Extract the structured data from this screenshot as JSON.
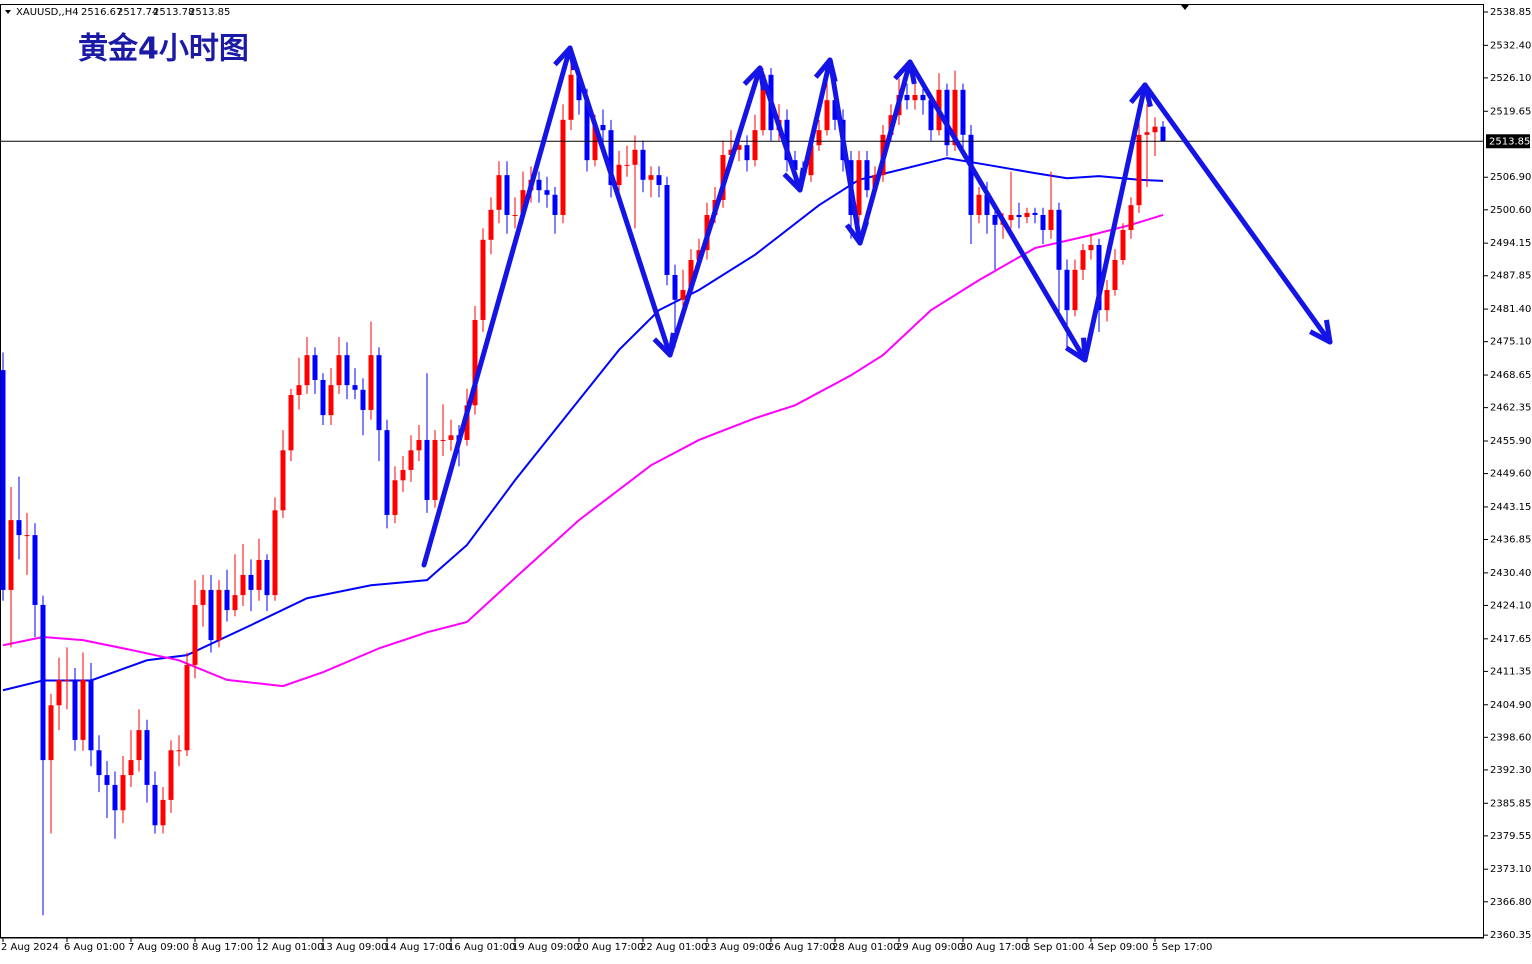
{
  "chart_data": {
    "type": "candlestick",
    "title": "黄金4小时图",
    "symbol": "XAUUSD,,H4",
    "bull_color": "#ff0000",
    "bear_color": "#0000ff",
    "price_line_color": "#000000",
    "ylim": [
      2359.8,
      2540.2
    ],
    "yticks": [
      2538.85,
      {
        "value": 2532.4,
        "label": "2532.40"
      },
      {
        "value": 2526.1,
        "label": "2526.10"
      },
      2519.65,
      {
        "value": 2506.9,
        "label": "2506.90"
      },
      {
        "value": 2500.6,
        "label": "2500.60"
      },
      2494.15,
      2487.85,
      {
        "value": 2481.4,
        "label": "2481.40"
      },
      {
        "value": 2475.1,
        "label": "2475.10"
      },
      2468.65,
      2462.35,
      {
        "value": 2455.9,
        "label": "2455.90"
      },
      {
        "value": 2449.6,
        "label": "2449.60"
      },
      2443.15,
      2436.85,
      {
        "value": 2430.4,
        "label": "2430.40"
      },
      {
        "value": 2424.1,
        "label": "2424.10"
      },
      2417.65,
      2411.35,
      {
        "value": 2404.9,
        "label": "2404.90"
      },
      {
        "value": 2398.6,
        "label": "2398.60"
      },
      {
        "value": 2392.3,
        "label": "2392.30"
      },
      2385.85,
      2379.55,
      {
        "value": 2373.1,
        "label": "2373.10"
      },
      {
        "value": 2366.8,
        "label": "2366.80"
      },
      2360.35
    ],
    "categories": [
      "2 Aug 2024",
      null,
      null,
      null,
      null,
      null,
      null,
      null,
      "6 Aug 01:00",
      null,
      null,
      null,
      null,
      null,
      null,
      null,
      "7 Aug 09:00",
      null,
      null,
      null,
      null,
      null,
      null,
      null,
      "8 Aug 17:00",
      null,
      null,
      null,
      null,
      null,
      null,
      null,
      "12 Aug 01:00",
      null,
      null,
      null,
      null,
      null,
      null,
      null,
      "13 Aug 09:00",
      null,
      null,
      null,
      null,
      null,
      null,
      null,
      "14 Aug 17:00",
      null,
      null,
      null,
      null,
      null,
      null,
      null,
      "16 Aug 01:00",
      null,
      null,
      null,
      null,
      null,
      null,
      null,
      "19 Aug 09:00",
      null,
      null,
      null,
      null,
      null,
      null,
      null,
      "20 Aug 17:00",
      null,
      null,
      null,
      null,
      null,
      null,
      null,
      "22 Aug 01:00",
      null,
      null,
      null,
      null,
      null,
      null,
      null,
      "23 Aug 09:00",
      null,
      null,
      null,
      null,
      null,
      null,
      null,
      "26 Aug 17:00",
      null,
      null,
      null,
      null,
      null,
      null,
      null,
      "28 Aug 01:00",
      null,
      null,
      null,
      null,
      null,
      null,
      null,
      "29 Aug 09:00",
      null,
      null,
      null,
      null,
      null,
      null,
      null,
      "30 Aug 17:00",
      null,
      null,
      null,
      null,
      null,
      null,
      null,
      "3 Sep 01:00",
      null,
      null,
      null,
      null,
      null,
      null,
      null,
      "4 Sep 09:00",
      null,
      null,
      null,
      null,
      null,
      null,
      null,
      "5 Sep 17:00",
      null
    ],
    "ohlc": [
      [
        2469.6,
        2473.0,
        2425.0,
        2427.1
      ],
      [
        2427.1,
        2447.0,
        2416.0,
        2440.6
      ],
      [
        2440.6,
        2449.0,
        2433.0,
        2437.7
      ],
      [
        2437.7,
        2442.0,
        2430.0,
        2437.7
      ],
      [
        2437.7,
        2440.0,
        2418.0,
        2424.2
      ],
      [
        2424.2,
        2426.0,
        2364.2,
        2394.2
      ],
      [
        2394.2,
        2407.0,
        2380.0,
        2404.8
      ],
      [
        2404.8,
        2414.0,
        2400.0,
        2409.7
      ],
      [
        2409.7,
        2416.0,
        2404.0,
        2409.7
      ],
      [
        2409.7,
        2412.0,
        2396.0,
        2398.1
      ],
      [
        2398.1,
        2415.0,
        2396.0,
        2409.7
      ],
      [
        2409.7,
        2413.0,
        2393.0,
        2396.1
      ],
      [
        2396.1,
        2399.0,
        2388.0,
        2391.3
      ],
      [
        2391.3,
        2394.0,
        2383.0,
        2389.4
      ],
      [
        2389.4,
        2392.0,
        2379.0,
        2384.5
      ],
      [
        2384.5,
        2395.0,
        2382.0,
        2391.3
      ],
      [
        2391.3,
        2400.0,
        2389.0,
        2394.2
      ],
      [
        2394.2,
        2404.0,
        2392.0,
        2400.0
      ],
      [
        2400.0,
        2402.0,
        2386.0,
        2389.4
      ],
      [
        2389.4,
        2392.0,
        2380.0,
        2381.6
      ],
      [
        2381.6,
        2389.0,
        2380.0,
        2386.5
      ],
      [
        2386.5,
        2398.0,
        2384.0,
        2396.1
      ],
      [
        2396.1,
        2399.0,
        2393.0,
        2396.1
      ],
      [
        2396.1,
        2415.0,
        2395.0,
        2412.6
      ],
      [
        2412.6,
        2429.0,
        2410.0,
        2424.2
      ],
      [
        2424.2,
        2430.0,
        2420.0,
        2427.1
      ],
      [
        2427.1,
        2430.0,
        2415.0,
        2417.4
      ],
      [
        2417.4,
        2429.0,
        2416.0,
        2427.1
      ],
      [
        2427.1,
        2431.0,
        2421.0,
        2423.2
      ],
      [
        2423.2,
        2434.0,
        2422.0,
        2426.1
      ],
      [
        2426.1,
        2436.0,
        2424.0,
        2430.0
      ],
      [
        2430.0,
        2433.0,
        2423.0,
        2427.1
      ],
      [
        2427.1,
        2437.0,
        2425.0,
        2432.9
      ],
      [
        2432.9,
        2434.0,
        2423.0,
        2426.1
      ],
      [
        2426.1,
        2445.0,
        2425.0,
        2442.5
      ],
      [
        2442.5,
        2458.0,
        2441.0,
        2454.1
      ],
      [
        2454.1,
        2466.0,
        2452.0,
        2464.8
      ],
      [
        2464.8,
        2472.0,
        2462.0,
        2466.7
      ],
      [
        2466.7,
        2476.0,
        2465.0,
        2472.5
      ],
      [
        2472.5,
        2474.0,
        2465.0,
        2467.7
      ],
      [
        2467.7,
        2469.0,
        2459.0,
        2460.9
      ],
      [
        2460.9,
        2470.0,
        2459.0,
        2466.7
      ],
      [
        2466.7,
        2476.0,
        2465.0,
        2472.5
      ],
      [
        2472.5,
        2475.0,
        2464.0,
        2466.7
      ],
      [
        2466.7,
        2470.0,
        2464.0,
        2465.8
      ],
      [
        2465.8,
        2468.0,
        2457.0,
        2461.9
      ],
      [
        2461.9,
        2479.0,
        2460.0,
        2472.5
      ],
      [
        2472.5,
        2474.0,
        2452.0,
        2458.0
      ],
      [
        2458.0,
        2460.0,
        2439.0,
        2441.6
      ],
      [
        2441.6,
        2451.0,
        2440.0,
        2448.3
      ],
      [
        2448.3,
        2453.0,
        2446.0,
        2450.3
      ],
      [
        2450.3,
        2457.0,
        2448.0,
        2454.1
      ],
      [
        2454.1,
        2459.0,
        2452.0,
        2456.1
      ],
      [
        2456.1,
        2469.0,
        2442.0,
        2444.5
      ],
      [
        2444.5,
        2458.0,
        2443.0,
        2456.1
      ],
      [
        2456.1,
        2463.0,
        2453.0,
        2456.1
      ],
      [
        2456.1,
        2460.0,
        2454.0,
        2457.0
      ],
      [
        2457.0,
        2459.0,
        2451.0,
        2456.1
      ],
      [
        2456.1,
        2466.0,
        2455.0,
        2462.8
      ],
      [
        2462.8,
        2482.0,
        2461.0,
        2479.3
      ],
      [
        2479.3,
        2497.0,
        2477.0,
        2494.8
      ],
      [
        2494.8,
        2503.0,
        2492.0,
        2500.6
      ],
      [
        2500.6,
        2510.0,
        2498.0,
        2507.3
      ],
      [
        2507.3,
        2510.0,
        2496.0,
        2499.6
      ],
      [
        2499.6,
        2503.0,
        2497.0,
        2499.6
      ],
      [
        2499.6,
        2508.0,
        2498.0,
        2504.4
      ],
      [
        2504.4,
        2509.0,
        2502.0,
        2506.4
      ],
      [
        2506.4,
        2508.0,
        2502.0,
        2504.4
      ],
      [
        2504.4,
        2507.0,
        2501.0,
        2503.5
      ],
      [
        2503.5,
        2505.0,
        2496.0,
        2499.6
      ],
      [
        2499.6,
        2521.0,
        2498.0,
        2518.0
      ],
      [
        2518.0,
        2531.5,
        2516.0,
        2526.7
      ],
      [
        2526.7,
        2528.0,
        2519.0,
        2521.8
      ],
      [
        2521.8,
        2524.0,
        2508.0,
        2510.2
      ],
      [
        2510.2,
        2519.0,
        2509.0,
        2517.0
      ],
      [
        2517.0,
        2520.0,
        2513.0,
        2516.0
      ],
      [
        2516.0,
        2518.0,
        2503.0,
        2505.4
      ],
      [
        2505.4,
        2512.0,
        2504.0,
        2509.3
      ],
      [
        2509.3,
        2513.0,
        2507.0,
        2509.3
      ],
      [
        2509.3,
        2515.0,
        2497.0,
        2512.2
      ],
      [
        2512.2,
        2514.0,
        2504.0,
        2506.4
      ],
      [
        2506.4,
        2509.0,
        2503.0,
        2507.3
      ],
      [
        2507.3,
        2509.0,
        2503.0,
        2505.4
      ],
      [
        2505.4,
        2507.0,
        2486.0,
        2488.0
      ],
      [
        2488.0,
        2490.0,
        2474.0,
        2483.2
      ],
      [
        2483.2,
        2489.0,
        2481.0,
        2485.1
      ],
      [
        2485.1,
        2493.0,
        2484.0,
        2490.9
      ],
      [
        2490.9,
        2495.0,
        2489.0,
        2492.8
      ],
      [
        2492.8,
        2502.0,
        2491.0,
        2499.6
      ],
      [
        2499.6,
        2505.0,
        2498.0,
        2502.5
      ],
      [
        2502.5,
        2514.0,
        2501.0,
        2511.2
      ],
      [
        2511.2,
        2516.0,
        2509.0,
        2512.2
      ],
      [
        2512.2,
        2515.0,
        2510.0,
        2513.1
      ],
      [
        2513.1,
        2515.0,
        2508.0,
        2510.2
      ],
      [
        2510.2,
        2519.0,
        2509.0,
        2516.0
      ],
      [
        2516.0,
        2528.0,
        2515.0,
        2526.7
      ],
      [
        2526.7,
        2528.0,
        2514.0,
        2516.0
      ],
      [
        2516.0,
        2521.0,
        2514.0,
        2518.0
      ],
      [
        2518.0,
        2520.0,
        2508.0,
        2510.2
      ],
      [
        2510.2,
        2512.0,
        2506.0,
        2508.3
      ],
      [
        2508.3,
        2510.0,
        2505.0,
        2507.3
      ],
      [
        2507.3,
        2515.0,
        2506.0,
        2513.1
      ],
      [
        2513.1,
        2518.0,
        2512.0,
        2516.0
      ],
      [
        2516.0,
        2526.0,
        2515.0,
        2521.8
      ],
      [
        2521.8,
        2525.0,
        2516.0,
        2518.0
      ],
      [
        2518.0,
        2520.0,
        2508.0,
        2510.2
      ],
      [
        2510.2,
        2512.0,
        2495.0,
        2499.6
      ],
      [
        2499.6,
        2512.0,
        2498.0,
        2510.2
      ],
      [
        2510.2,
        2512.0,
        2503.0,
        2504.4
      ],
      [
        2504.4,
        2509.0,
        2503.0,
        2507.3
      ],
      [
        2507.3,
        2517.0,
        2506.0,
        2515.1
      ],
      [
        2515.1,
        2521.0,
        2514.0,
        2518.9
      ],
      [
        2518.9,
        2526.0,
        2517.0,
        2522.8
      ],
      [
        2522.8,
        2525.0,
        2520.0,
        2521.8
      ],
      [
        2521.8,
        2525.0,
        2520.0,
        2522.8
      ],
      [
        2522.8,
        2524.0,
        2519.0,
        2521.8
      ],
      [
        2521.8,
        2523.0,
        2514.0,
        2516.0
      ],
      [
        2516.0,
        2527.0,
        2515.0,
        2523.8
      ],
      [
        2523.8,
        2525.0,
        2511.0,
        2513.1
      ],
      [
        2513.1,
        2527.5,
        2512.0,
        2523.8
      ],
      [
        2523.8,
        2525.0,
        2512.0,
        2515.1
      ],
      [
        2515.1,
        2517.0,
        2494.0,
        2499.6
      ],
      [
        2499.6,
        2505.0,
        2498.0,
        2503.5
      ],
      [
        2503.5,
        2506.0,
        2496.0,
        2499.6
      ],
      [
        2499.6,
        2501.0,
        2489.0,
        2497.7
      ],
      [
        2497.7,
        2500.0,
        2495.0,
        2498.6
      ],
      [
        2498.6,
        2508.0,
        2497.0,
        2499.6
      ],
      [
        2499.6,
        2502.0,
        2497.0,
        2499.2
      ],
      [
        2499.2,
        2501.0,
        2498.0,
        2500.0
      ],
      [
        2500.0,
        2501.0,
        2498.0,
        2499.6
      ],
      [
        2499.6,
        2501.0,
        2494.0,
        2496.7
      ],
      [
        2496.7,
        2508.0,
        2495.0,
        2500.6
      ],
      [
        2500.6,
        2502.0,
        2480.0,
        2489.0
      ],
      [
        2489.0,
        2491.0,
        2474.0,
        2481.2
      ],
      [
        2481.2,
        2491.0,
        2480.0,
        2489.0
      ],
      [
        2489.0,
        2494.0,
        2487.0,
        2492.8
      ],
      [
        2492.8,
        2496.0,
        2491.0,
        2493.8
      ],
      [
        2493.8,
        2495.0,
        2477.0,
        2481.2
      ],
      [
        2481.2,
        2487.0,
        2479.0,
        2485.1
      ],
      [
        2485.1,
        2493.0,
        2484.0,
        2490.9
      ],
      [
        2490.9,
        2498.0,
        2490.0,
        2496.7
      ],
      [
        2496.7,
        2503.0,
        2495.0,
        2501.5
      ],
      [
        2501.5,
        2518.0,
        2500.0,
        2515.1
      ],
      [
        2515.1,
        2521.0,
        2505.0,
        2515.6
      ],
      [
        2515.6,
        2518.5,
        2511.0,
        2516.67
      ],
      [
        2516.67,
        2517.74,
        2513.78,
        2513.85
      ]
    ],
    "moving_averages": [
      {
        "color": "#0000ff",
        "x": [
          0,
          5,
          11,
          18,
          23,
          31,
          38,
          46,
          53,
          58,
          64,
          71,
          77,
          82,
          87,
          94,
          102,
          107,
          112,
          118,
          123,
          129,
          133,
          137,
          142,
          145
        ],
        "values": [
          2407.7,
          2409.6,
          2409.6,
          2413.5,
          2414.5,
          2420.3,
          2425.5,
          2428.0,
          2429.0,
          2435.8,
          2448.3,
          2461.9,
          2473.5,
          2481.2,
          2485.1,
          2491.9,
          2501.5,
          2506.4,
          2508.3,
          2510.6,
          2509.3,
          2507.7,
          2506.7,
          2507.1,
          2506.4,
          2506.2
        ]
      },
      {
        "color": "#ff00ff",
        "x": [
          0,
          5,
          10,
          16,
          22,
          28,
          35,
          40,
          47,
          53,
          58,
          64,
          72,
          81,
          87,
          94,
          99,
          106,
          110,
          116,
          122,
          129,
          136,
          141,
          145
        ],
        "values": [
          2416.4,
          2418.0,
          2417.4,
          2415.5,
          2413.5,
          2409.7,
          2408.5,
          2411.2,
          2415.8,
          2418.9,
          2420.9,
          2429.4,
          2440.6,
          2451.2,
          2456.1,
          2460.3,
          2462.8,
          2468.6,
          2472.5,
          2481.2,
          2487.0,
          2493.2,
          2495.7,
          2497.7,
          2499.6
        ]
      }
    ]
  }
}
